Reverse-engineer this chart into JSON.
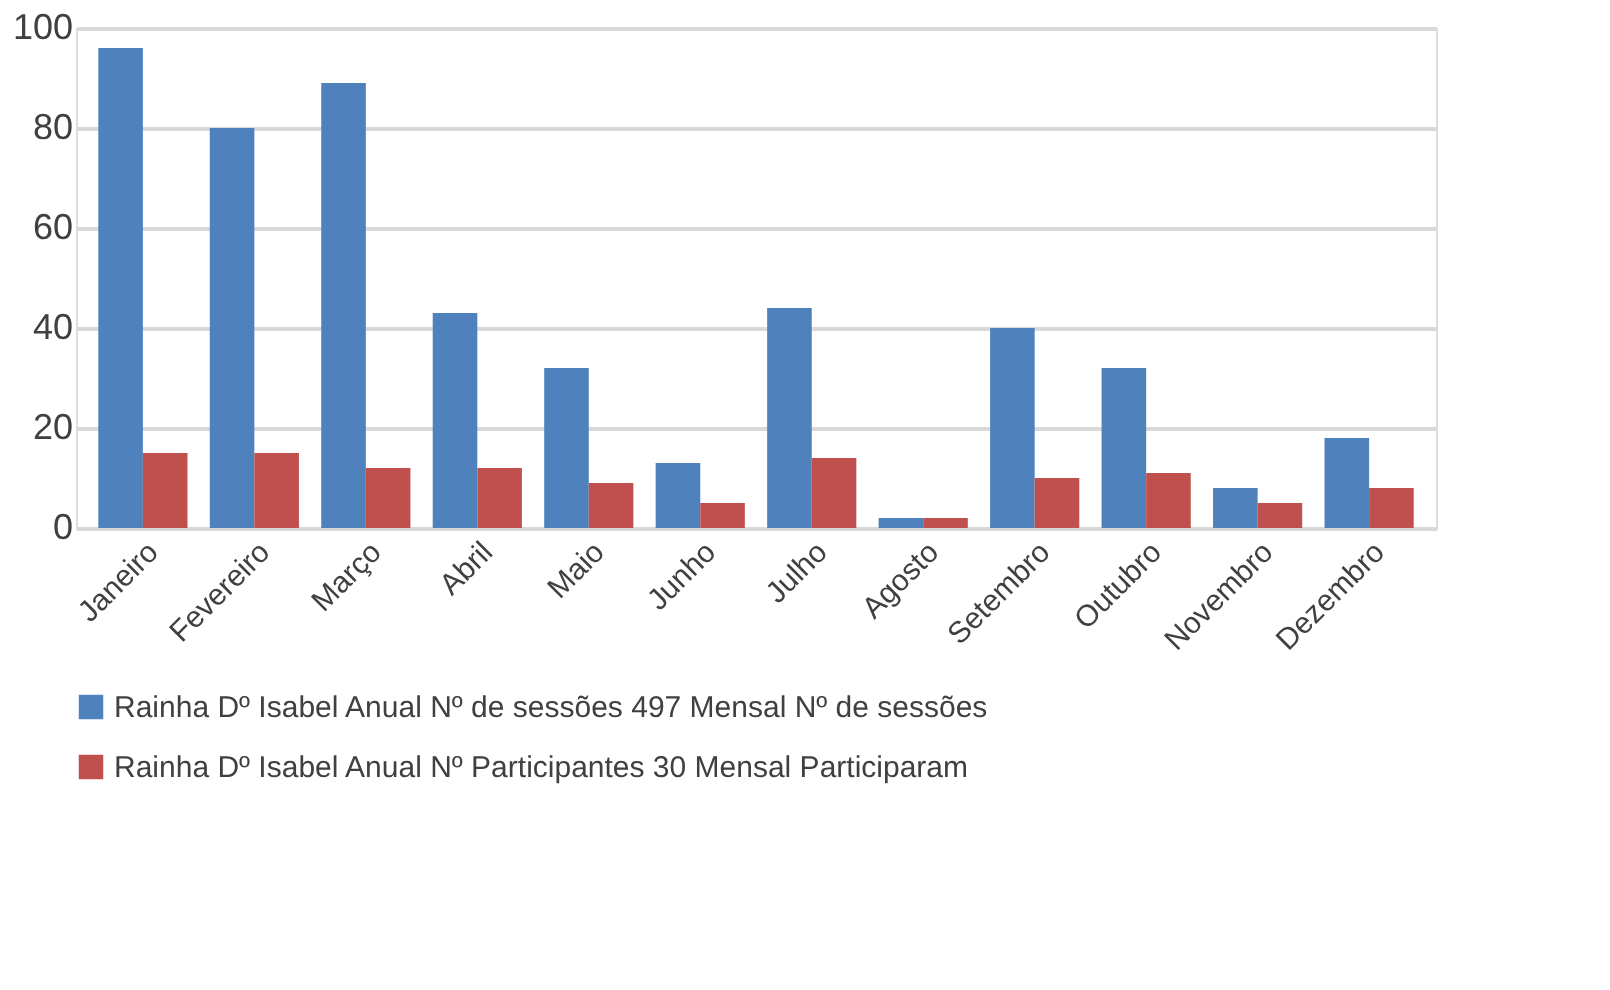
{
  "chart_data": {
    "type": "bar",
    "categories": [
      "Janeiro",
      "Fevereiro",
      "Março",
      "Abril",
      "Maio",
      "Junho",
      "Julho",
      "Agosto",
      "Setembro",
      "Outubro",
      "Novembro",
      "Dezembro"
    ],
    "series": [
      {
        "name": "Rainha Dº Isabel Anual Nº de sessões 497 Mensal Nº de sessões",
        "color": "#4f81bd",
        "values": [
          96,
          80,
          89,
          43,
          32,
          13,
          44,
          2,
          40,
          32,
          8,
          18
        ]
      },
      {
        "name": "Rainha Dº Isabel Anual Nº Participantes 30 Mensal Participaram",
        "color": "#c0504d",
        "values": [
          15,
          15,
          12,
          12,
          9,
          5,
          14,
          2,
          10,
          11,
          5,
          8
        ]
      }
    ],
    "ylim": [
      0,
      100
    ],
    "yticks": [
      0,
      20,
      40,
      60,
      80,
      100
    ],
    "grid": "y",
    "legend": "bottom"
  }
}
